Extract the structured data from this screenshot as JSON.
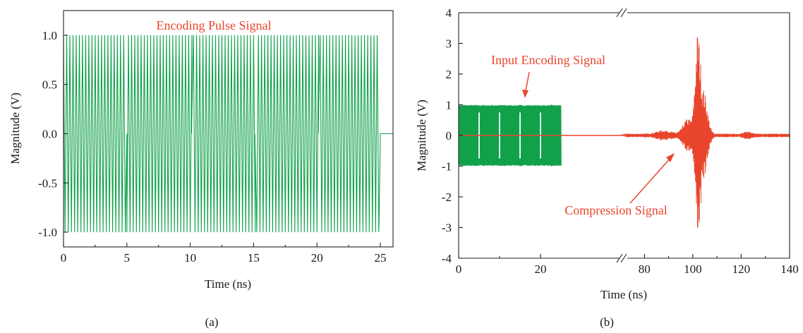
{
  "colors": {
    "green": "#10a14a",
    "red": "#e8452c",
    "axis": "#222222"
  },
  "chart_data": [
    {
      "type": "line",
      "panel_label": "(a)",
      "xlabel": "Time (ns)",
      "ylabel": "Magnitude (V)",
      "xlim": [
        0,
        26
      ],
      "ylim": [
        -1.15,
        1.25
      ],
      "x_ticks": [
        0,
        5,
        10,
        15,
        20,
        25
      ],
      "x_tick_labels": [
        "0",
        "5",
        "10",
        "15",
        "20",
        "25"
      ],
      "y_ticks": [
        1.0,
        0.5,
        0.0,
        -0.5,
        -1.0
      ],
      "y_tick_labels": [
        "1.0",
        "0.5",
        "0.0",
        "-0.5",
        "-1.0"
      ],
      "annotations": [
        {
          "text": "Encoding Pulse Signal"
        }
      ],
      "series": [
        {
          "color": "#10a14a",
          "description_values": {
            "carrier_period_ns": 0.25,
            "amplitude_V": 1.0,
            "signal_end_ns": 24.9,
            "phase_flips_ns": [
              5.0,
              10.1,
              15.1,
              20.1
            ],
            "flat_after_ns": 25.0,
            "flat_value_V": 0.0
          }
        }
      ]
    },
    {
      "type": "line",
      "panel_label": "(b)",
      "xlabel": "Time (ns)",
      "ylabel": "Magnitude (V)",
      "ylim": [
        -4,
        4
      ],
      "x_break": [
        30,
        70
      ],
      "x_ticks": [
        0,
        20,
        80,
        100,
        120,
        140
      ],
      "x_tick_labels": [
        "0",
        "20",
        "80",
        "100",
        "120",
        "140"
      ],
      "y_ticks": [
        4,
        3,
        2,
        1,
        0,
        -1,
        -2,
        -3,
        -4
      ],
      "y_tick_labels": [
        "4",
        "3",
        "2",
        "1",
        "0",
        "-1",
        "-2",
        "-3",
        "-4"
      ],
      "annotations": [
        {
          "text": "Input Encoding Signal"
        },
        {
          "text": "Compression Signal"
        }
      ],
      "series": [
        {
          "color": "#10a14a",
          "description_values": {
            "start_ns": 0,
            "end_ns": 25,
            "amplitude_V": 1.0
          }
        },
        {
          "color": "#e8452c",
          "description_values": {
            "start_ns": 0,
            "end_ns": 140,
            "peak_time_ns": 102,
            "peak_max_V": 3.2,
            "peak_min_V": -3.0,
            "secondary_burst_ns": 88
          }
        }
      ]
    }
  ]
}
